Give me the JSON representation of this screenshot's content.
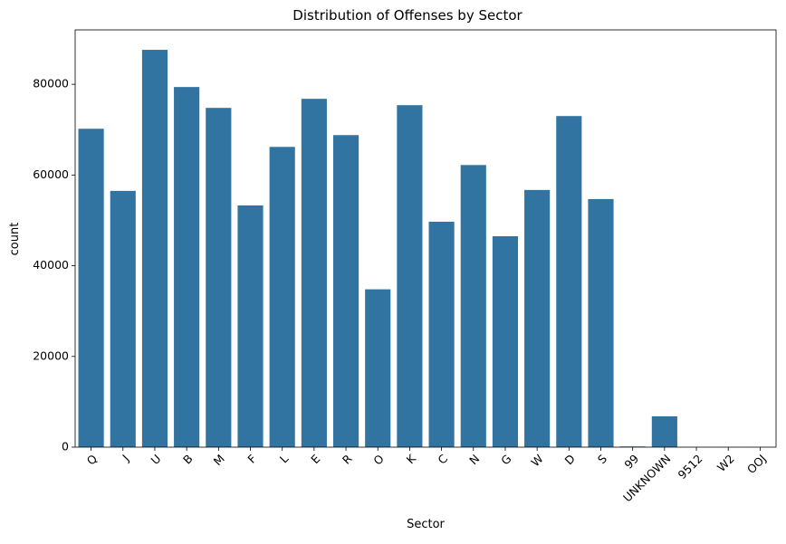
{
  "chart_data": {
    "type": "bar",
    "title": "Distribution of Offenses by Sector",
    "xlabel": "Sector",
    "ylabel": "count",
    "categories": [
      "Q",
      "J",
      "U",
      "B",
      "M",
      "F",
      "L",
      "E",
      "R",
      "O",
      "K",
      "C",
      "N",
      "G",
      "W",
      "D",
      "S",
      "99",
      "UNKNOWN",
      "9512",
      "W2",
      "OOJ"
    ],
    "values": [
      70200,
      56500,
      87600,
      79400,
      74800,
      53300,
      66200,
      76800,
      68800,
      34800,
      75400,
      49700,
      62200,
      46500,
      56700,
      73000,
      54700,
      150,
      6800,
      20,
      20,
      20
    ],
    "ylim": [
      0,
      92000
    ],
    "yticks": [
      0,
      20000,
      40000,
      60000,
      80000
    ],
    "ytick_labels": [
      "0",
      "20000",
      "40000",
      "60000",
      "80000"
    ],
    "bar_color": "#3274a1",
    "grid": false,
    "xtick_rotation": 45
  }
}
